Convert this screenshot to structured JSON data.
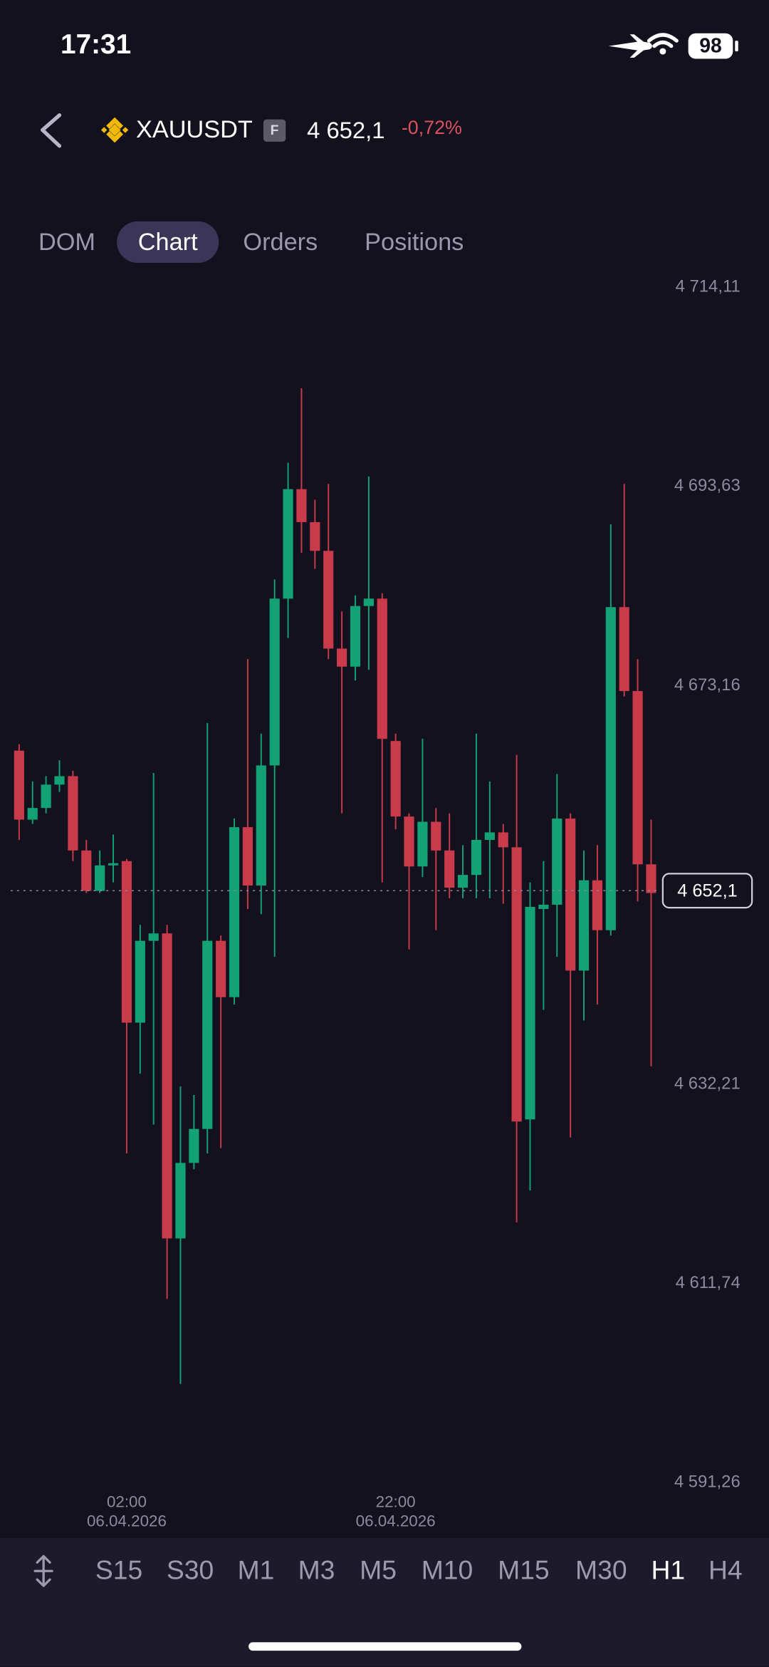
{
  "status_bar": {
    "time": "17:31",
    "battery": "98"
  },
  "header": {
    "symbol": "XAUUSDT",
    "badge": "F",
    "price": "4 652,1",
    "change": "-0,72%"
  },
  "tabs": {
    "items": [
      "DOM",
      "Chart",
      "Orders",
      "Positions"
    ],
    "active": 1
  },
  "timeframes": {
    "items": [
      "S15",
      "S30",
      "M1",
      "M3",
      "M5",
      "M10",
      "M15",
      "M30",
      "H1",
      "H4"
    ],
    "active": 8
  },
  "chart_data": {
    "type": "candlestick",
    "categories": [
      null,
      null,
      null,
      null,
      null,
      null,
      null,
      null,
      "02:00",
      null,
      null,
      null,
      null,
      null,
      null,
      null,
      null,
      null,
      null,
      null,
      null,
      null,
      null,
      null,
      null,
      null,
      null,
      null,
      "22:00",
      null,
      null,
      null,
      null,
      null,
      null,
      null,
      null,
      null,
      null,
      null,
      null,
      null,
      null,
      null,
      null,
      null,
      null,
      null
    ],
    "dates": [
      null,
      null,
      null,
      null,
      null,
      null,
      null,
      null,
      "06.04.2026",
      null,
      null,
      null,
      null,
      null,
      null,
      null,
      null,
      null,
      null,
      null,
      null,
      null,
      null,
      null,
      null,
      null,
      null,
      null,
      "06.04.2026",
      null,
      null,
      null,
      null,
      null,
      null,
      null,
      null,
      null,
      null,
      null,
      null,
      null,
      null,
      null,
      null,
      null,
      null,
      null
    ],
    "open": [
      4666.49,
      4659.4,
      4660.6,
      4663.0,
      4663.87,
      4656.23,
      4652.08,
      4654.7,
      4655.14,
      4638.54,
      4646.95,
      4647.71,
      4616.37,
      4624.13,
      4627.62,
      4646.95,
      4641.16,
      4658.63,
      4652.63,
      4664.97,
      4682.11,
      4693.36,
      4689.97,
      4687.02,
      4676.98,
      4675.12,
      4681.35,
      4682.11,
      4667.48,
      4659.72,
      4654.59,
      4659.18,
      4656.23,
      4652.41,
      4653.72,
      4657.32,
      4658.09,
      4656.56,
      4628.6,
      4650.22,
      4650.66,
      4659.51,
      4643.89,
      4653.17,
      4648.04,
      4681.24,
      4672.61,
      4654.81
    ],
    "high": [
      4667.15,
      4663.33,
      4663.87,
      4665.51,
      4664.42,
      4657.32,
      4656.23,
      4657.87,
      4655.36,
      4648.59,
      4664.2,
      4648.59,
      4631.99,
      4631.11,
      4669.33,
      4647.49,
      4659.51,
      4675.89,
      4668.24,
      4684.08,
      4696.09,
      4703.73,
      4692.27,
      4693.9,
      4680.8,
      4682.44,
      4694.67,
      4682.66,
      4668.24,
      4660.05,
      4667.7,
      4660.6,
      4660.05,
      4656.78,
      4668.24,
      4663.33,
      4658.96,
      4666.06,
      4652.95,
      4655.14,
      4664.09,
      4660.05,
      4656.23,
      4656.78,
      4689.75,
      4693.9,
      4675.89,
      4659.4
    ],
    "low": [
      4657.32,
      4658.96,
      4660.05,
      4662.24,
      4655.14,
      4651.86,
      4651.86,
      4652.95,
      4625.11,
      4633.3,
      4628.06,
      4610.15,
      4601.41,
      4623.47,
      4625.11,
      4625.65,
      4640.4,
      4650.22,
      4649.68,
      4645.31,
      4678.07,
      4686.81,
      4685.17,
      4675.89,
      4660.05,
      4673.7,
      4674.79,
      4652.95,
      4658.41,
      4646.07,
      4653.5,
      4648.04,
      4651.32,
      4651.32,
      4651.32,
      4651.32,
      4650.77,
      4618.01,
      4621.29,
      4639.85,
      4645.31,
      4626.75,
      4638.76,
      4640.4,
      4647.49,
      4672.06,
      4650.99,
      4634.06
    ],
    "close": [
      4659.4,
      4660.6,
      4663.0,
      4663.87,
      4656.23,
      4652.08,
      4654.7,
      4654.92,
      4638.54,
      4646.95,
      4647.71,
      4616.37,
      4624.13,
      4627.62,
      4646.95,
      4641.16,
      4658.63,
      4652.63,
      4664.97,
      4682.11,
      4693.36,
      4689.97,
      4687.02,
      4676.98,
      4675.12,
      4681.35,
      4682.11,
      4667.7,
      4659.72,
      4654.59,
      4659.18,
      4656.23,
      4652.41,
      4653.72,
      4657.32,
      4658.09,
      4656.56,
      4628.38,
      4650.44,
      4650.66,
      4659.51,
      4643.89,
      4653.17,
      4648.04,
      4681.24,
      4672.61,
      4654.81,
      4651.86
    ],
    "up_color": "#12a275",
    "down_color": "#c93a4b",
    "ylim": [
      4589.62,
      4715.74
    ],
    "yticks": [
      {
        "value": 4714.11,
        "label": "4 714,11"
      },
      {
        "value": 4693.63,
        "label": "4 693,63"
      },
      {
        "value": 4673.16,
        "label": "4 673,16"
      },
      {
        "value": 4632.21,
        "label": "4 632,21"
      },
      {
        "value": 4611.74,
        "label": "4 611,74"
      },
      {
        "value": 4591.26,
        "label": "4 591,26"
      }
    ],
    "current_price": {
      "value": 4652.1,
      "label": "4 652,1"
    }
  }
}
